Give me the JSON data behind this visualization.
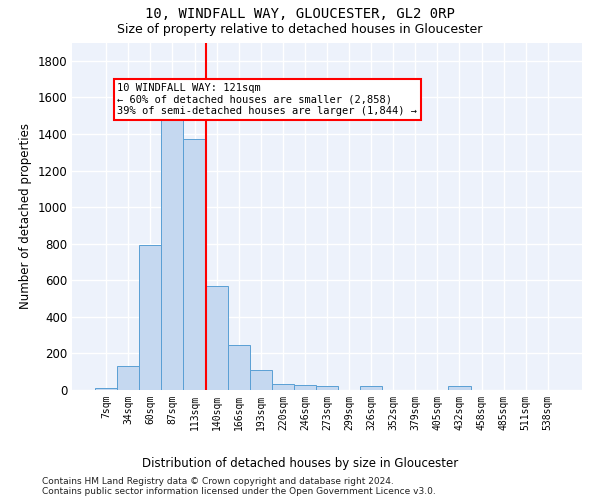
{
  "title1": "10, WINDFALL WAY, GLOUCESTER, GL2 0RP",
  "title2": "Size of property relative to detached houses in Gloucester",
  "xlabel": "Distribution of detached houses by size in Gloucester",
  "ylabel": "Number of detached properties",
  "footnote1": "Contains HM Land Registry data © Crown copyright and database right 2024.",
  "footnote2": "Contains public sector information licensed under the Open Government Licence v3.0.",
  "bar_labels": [
    "7sqm",
    "34sqm",
    "60sqm",
    "87sqm",
    "113sqm",
    "140sqm",
    "166sqm",
    "193sqm",
    "220sqm",
    "246sqm",
    "273sqm",
    "299sqm",
    "326sqm",
    "352sqm",
    "379sqm",
    "405sqm",
    "432sqm",
    "458sqm",
    "485sqm",
    "511sqm",
    "538sqm"
  ],
  "bar_values": [
    10,
    130,
    795,
    1475,
    1375,
    570,
    248,
    110,
    35,
    25,
    20,
    0,
    20,
    0,
    0,
    0,
    20,
    0,
    0,
    0,
    0
  ],
  "bar_color": "#c5d8f0",
  "bar_edge_color": "#5a9fd4",
  "ylim": [
    0,
    1900
  ],
  "yticks": [
    0,
    200,
    400,
    600,
    800,
    1000,
    1200,
    1400,
    1600,
    1800
  ],
  "vline_color": "red",
  "vline_x_index": 4,
  "annotation_line1": "10 WINDFALL WAY: 121sqm",
  "annotation_line2": "← 60% of detached houses are smaller (2,858)",
  "annotation_line3": "39% of semi-detached houses are larger (1,844) →",
  "annotation_box_facecolor": "white",
  "annotation_box_edgecolor": "red",
  "background_color": "#edf2fb",
  "grid_color": "white",
  "title1_fontsize": 10,
  "title2_fontsize": 9
}
